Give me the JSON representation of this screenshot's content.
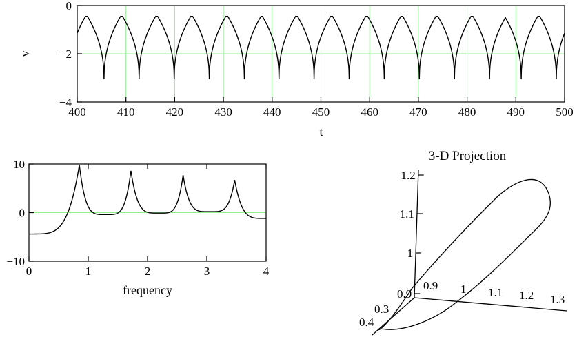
{
  "chart_data": [
    {
      "type": "line",
      "ylabel": "v",
      "xlabel": "t",
      "xlim": [
        400,
        500
      ],
      "ylim": [
        -4,
        0
      ],
      "x_ticks": [
        "400",
        "410",
        "420",
        "430",
        "440",
        "450",
        "460",
        "470",
        "480",
        "490",
        "500"
      ],
      "y_ticks": [
        "0",
        "−2",
        "−4"
      ],
      "grid": "vertical every 10, horizontal at -2",
      "grid_color": "#90ee90",
      "line_color": "#000000",
      "series": [
        {
          "baseline": -0.45,
          "spike_min": -3.05,
          "spike_times": [
            405.5,
            412.7,
            419.9,
            427.1,
            434.3,
            441.4,
            448.6,
            455.8,
            463.0,
            470.2,
            477.4,
            484.6,
            491.1,
            498.3
          ]
        }
      ]
    },
    {
      "type": "line",
      "xlabel": "frequency",
      "xlim": [
        0,
        4
      ],
      "ylim": [
        -10,
        10
      ],
      "x_ticks": [
        "0",
        "1",
        "2",
        "3",
        "4"
      ],
      "y_ticks": [
        "10",
        "0",
        "−10"
      ],
      "grid": "horizontal at 0",
      "grid_color": "#90ee90",
      "series": [
        {
          "start": -4.4,
          "end": -1.2,
          "peaks": [
            {
              "x": 0.85,
              "y": 9.8
            },
            {
              "x": 1.72,
              "y": 8.6
            },
            {
              "x": 2.6,
              "y": 7.7
            },
            {
              "x": 3.47,
              "y": 6.7
            }
          ],
          "troughs": [
            {
              "x": 1.3,
              "y": -0.4
            },
            {
              "x": 2.2,
              "y": -0.1
            },
            {
              "x": 3.05,
              "y": 0.2
            }
          ]
        }
      ]
    },
    {
      "type": "line",
      "title": "3-D Projection",
      "vertical_axis_ticks": [
        "1.2",
        "1.1",
        "1",
        "0.9"
      ],
      "right_axis_ticks": [
        "0.9",
        "1",
        "1.1",
        "1.2",
        "1.3"
      ],
      "left_axis_ticks": [
        "0.3",
        "0.4"
      ],
      "curve": "closed loop"
    }
  ]
}
